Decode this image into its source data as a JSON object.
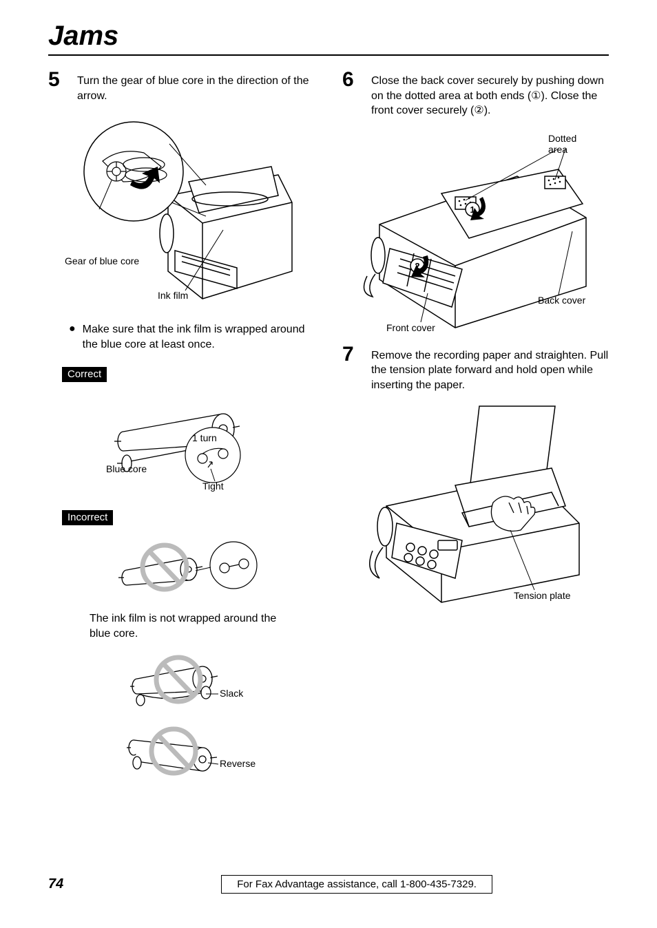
{
  "title": "Jams",
  "page_number": "74",
  "footer_text": "For Fax Advantage assistance, call 1-800-435-7329.",
  "left": {
    "step5": {
      "num": "5",
      "text": "Turn the gear of blue core in the direction of the arrow.",
      "label_gear": "Gear of blue core",
      "label_ink": "Ink film",
      "bullet": "Make sure that the ink film is wrapped around the blue core at least once."
    },
    "correct": {
      "badge": "Correct",
      "label_blue": "Blue core",
      "label_turn": "1 turn",
      "label_tight": "Tight"
    },
    "incorrect": {
      "badge": "Incorrect",
      "caption": "The ink film is not wrapped around the blue core.",
      "label_slack": "Slack",
      "label_reverse": "Reverse"
    }
  },
  "right": {
    "step6": {
      "num": "6",
      "text": "Close the back cover securely by pushing down on the dotted area at both ends (①). Close the front cover securely (②).",
      "label_dotted": "Dotted area",
      "label_back": "Back cover",
      "label_front": "Front cover",
      "circ1": "1",
      "circ2": "2"
    },
    "step7": {
      "num": "7",
      "text": "Remove the recording paper and straighten. Pull the tension plate forward and hold open while inserting the paper.",
      "label_tension": "Tension plate"
    }
  }
}
